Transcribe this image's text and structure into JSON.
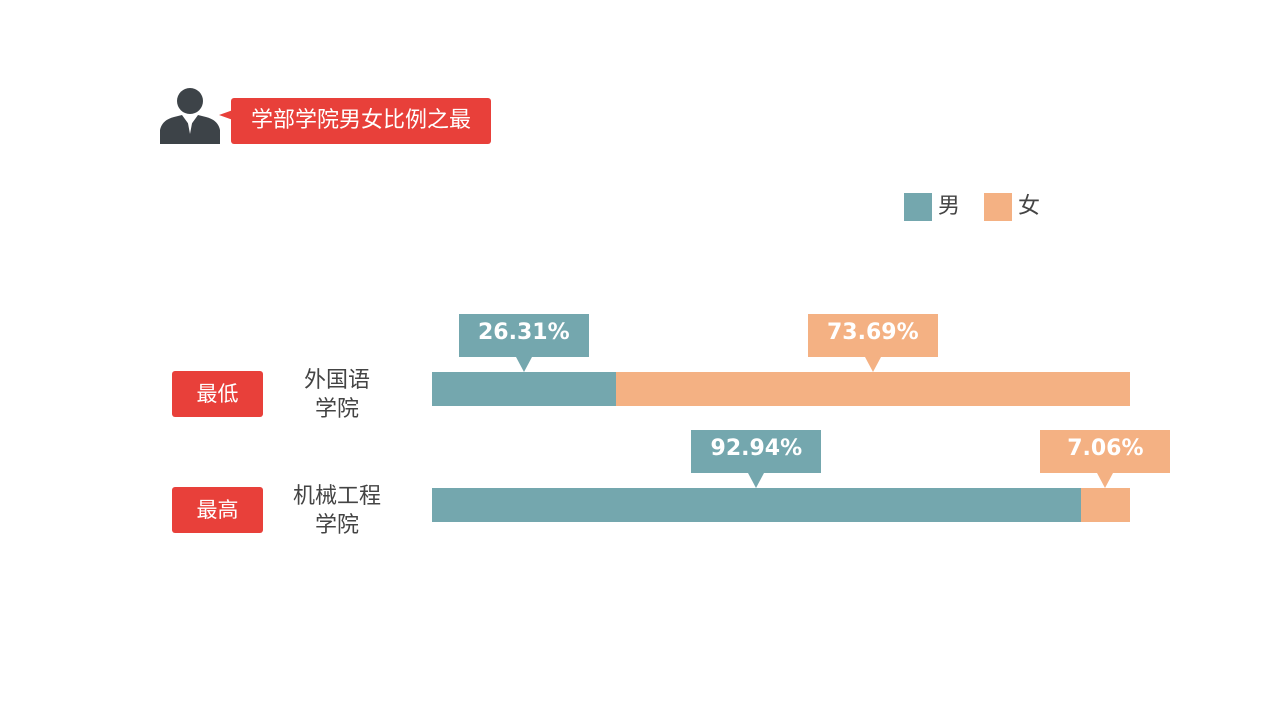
{
  "chart_data": {
    "type": "bar",
    "orientation": "horizontal",
    "stacked": true,
    "title": "学部学院男女比例之最",
    "categories": [
      "外国语\n学院",
      "机械工程\n学院"
    ],
    "tags": [
      "最低",
      "最高"
    ],
    "series": [
      {
        "name": "男",
        "color": "#74a7ae",
        "values": [
          26.31,
          92.94
        ],
        "value_labels": [
          "26.31%",
          "92.94%"
        ]
      },
      {
        "name": "女",
        "color": "#f4b183",
        "values": [
          73.69,
          7.06
        ],
        "value_labels": [
          "73.69%",
          "7.06%"
        ]
      }
    ]
  }
}
